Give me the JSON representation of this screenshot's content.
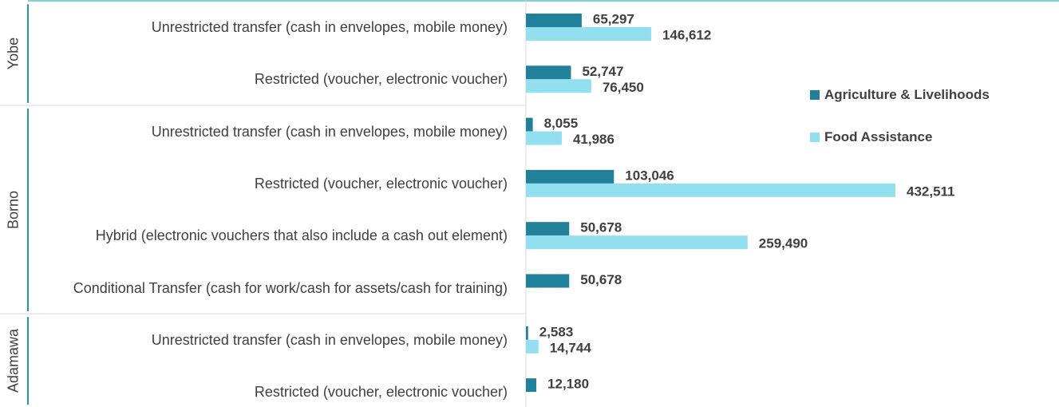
{
  "chart_data": {
    "type": "bar",
    "orientation": "horizontal",
    "categories": [
      "Unrestricted transfer (cash in envelopes, mobile money)",
      "Restricted (voucher, electronic voucher)",
      "Unrestricted transfer (cash in envelopes, mobile money)",
      "Restricted (voucher, electronic voucher)",
      "Hybrid (electronic vouchers that also include a cash out element)",
      "Conditional Transfer (cash for work/cash for assets/cash for training)",
      "Unrestricted transfer (cash in envelopes, mobile money)",
      "Restricted (voucher, electronic voucher)"
    ],
    "category_groups": [
      "Yobe",
      "Yobe",
      "Borno",
      "Borno",
      "Borno",
      "Borno",
      "Adamawa",
      "Adamawa"
    ],
    "series": [
      {
        "name": "Agriculture & Livelihoods",
        "color": "#21809a",
        "values": [
          65297,
          52747,
          8055,
          103046,
          50678,
          50678,
          2583,
          12180
        ],
        "value_labels": [
          "65,297",
          "52,747",
          "8,055",
          "103,046",
          "50,678",
          "50,678",
          "2,583",
          "12,180"
        ]
      },
      {
        "name": "Food Assistance",
        "color": "#92dfef",
        "values": [
          146612,
          76450,
          41986,
          432511,
          259490,
          null,
          14744,
          null
        ],
        "value_labels": [
          "146,612",
          "76,450",
          "41,986",
          "432,511",
          "259,490",
          null,
          "14,744",
          null
        ]
      }
    ],
    "legend": "right"
  }
}
